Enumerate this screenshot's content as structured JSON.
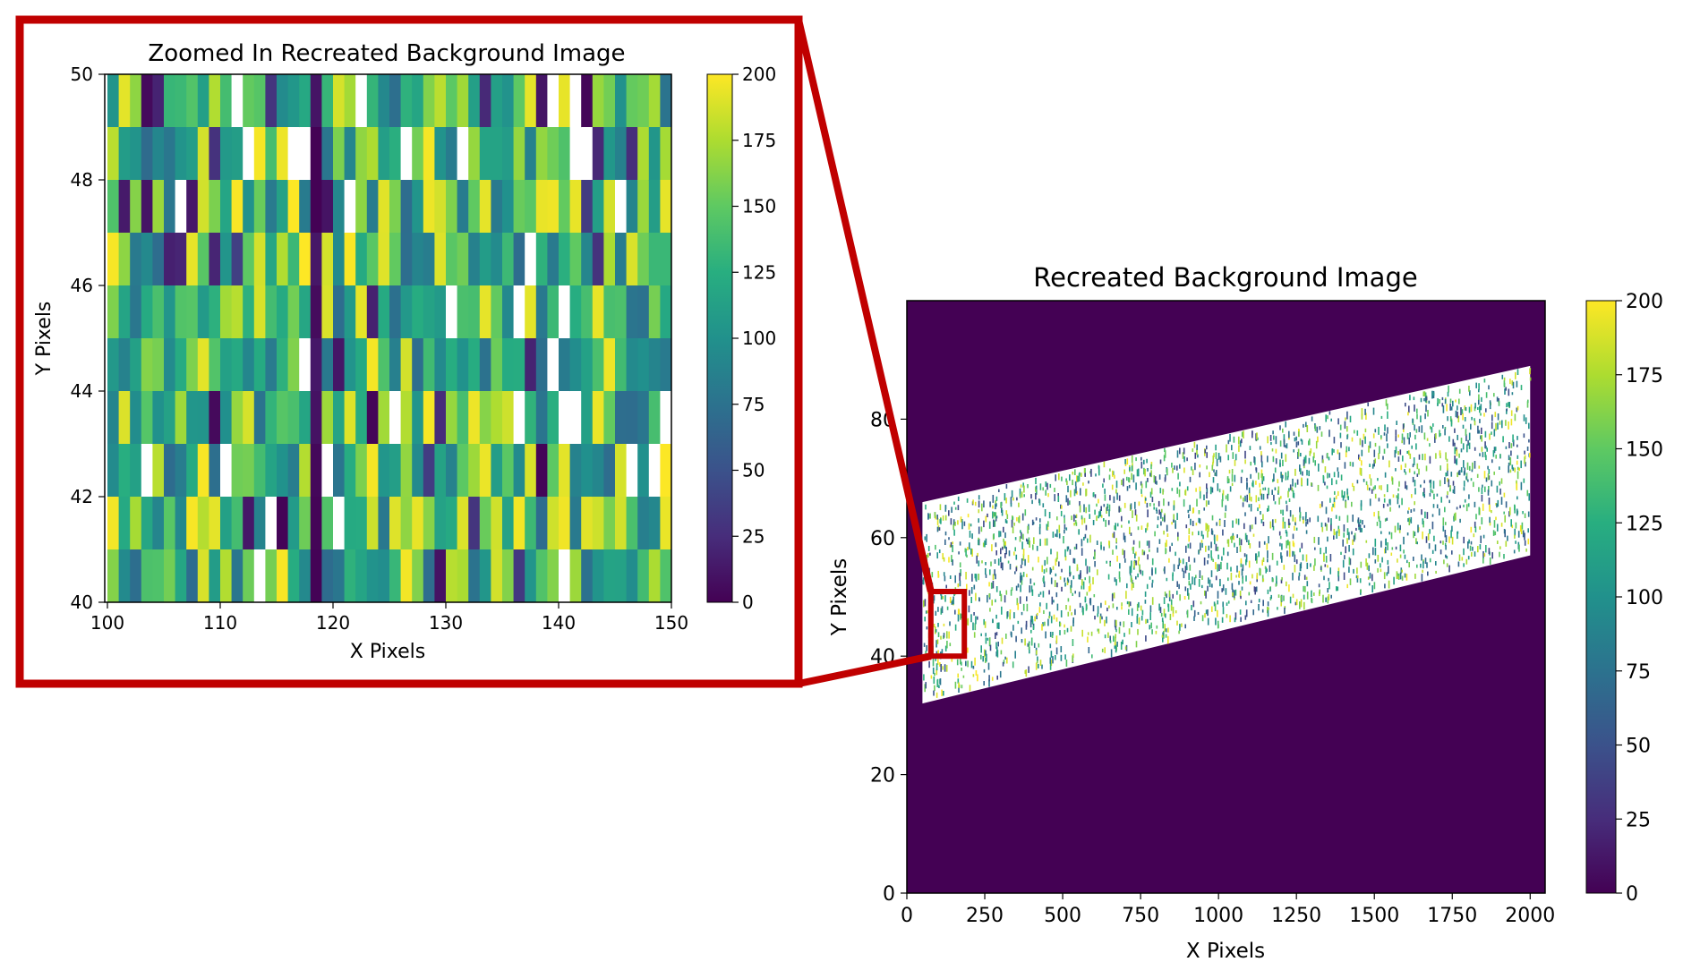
{
  "chart_data": [
    {
      "id": "zoom",
      "type": "heatmap",
      "title": "Zoomed In Recreated Background Image",
      "xlabel": "X Pixels",
      "ylabel": "Y Pixels",
      "xlim": [
        100,
        150
      ],
      "ylim": [
        40,
        50
      ],
      "xticks": [
        100,
        110,
        120,
        130,
        140,
        150
      ],
      "yticks": [
        40,
        42,
        44,
        46,
        48,
        50
      ],
      "colormap": "viridis",
      "colorbar": {
        "min": 0,
        "max": 200,
        "ticks": [
          0,
          25,
          50,
          75,
          100,
          125,
          150,
          175,
          200
        ]
      },
      "over_range_color": "#ffffff",
      "cell_grid": {
        "columns": 50,
        "rows": 10
      }
    },
    {
      "id": "full",
      "type": "heatmap",
      "title": "Recreated Background Image",
      "xlabel": "X Pixels",
      "ylabel": "Y Pixels",
      "xlim": [
        0,
        2048
      ],
      "ylim": [
        0,
        100
      ],
      "xticks": [
        0,
        250,
        500,
        750,
        1000,
        1250,
        1500,
        1750,
        2000
      ],
      "yticks": [
        0,
        20,
        40,
        60,
        80
      ],
      "colormap": "viridis",
      "background_value": 0,
      "colorbar": {
        "min": 0,
        "max": 200,
        "ticks": [
          0,
          25,
          50,
          75,
          100,
          125,
          150,
          175,
          200
        ]
      },
      "over_range_color": "#ffffff",
      "signal_band": {
        "x_range": [
          50,
          2000
        ],
        "left_edge": {
          "x": 50,
          "y_bottom": 32,
          "y_top": 66
        },
        "right_edge": {
          "x": 2000,
          "y_bottom": 57,
          "y_top": 89
        }
      },
      "zoom_region": {
        "x": [
          100,
          150
        ],
        "y": [
          40,
          50
        ]
      }
    }
  ],
  "highlight_color": "#c00000"
}
